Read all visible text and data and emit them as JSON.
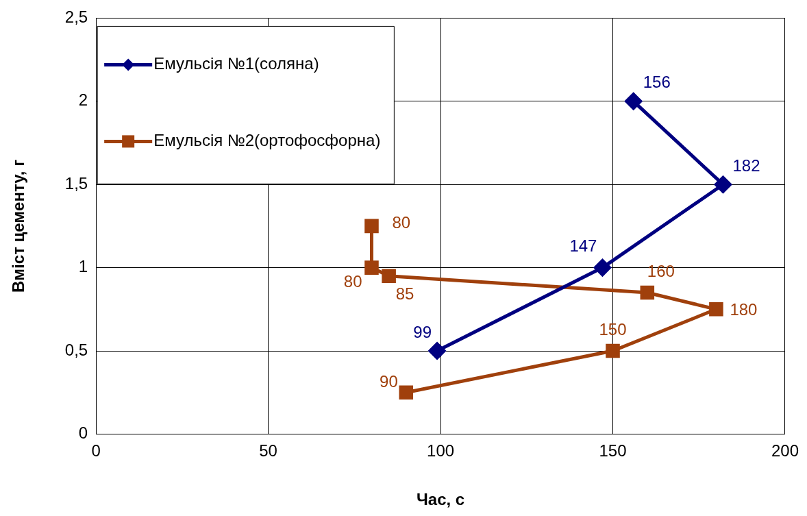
{
  "chart_data": {
    "type": "line",
    "xlabel": "Час, с",
    "ylabel": "Вміст цементу, г",
    "xlim": [
      0,
      200
    ],
    "xticks": [
      0,
      50,
      100,
      150,
      200
    ],
    "ylim": [
      0,
      2.5
    ],
    "yticks": [
      0,
      {
        "value": 0.5,
        "label": "0,5"
      },
      1,
      {
        "value": 1.5,
        "label": "1,5"
      },
      2,
      {
        "value": 2.5,
        "label": "2,5"
      }
    ],
    "grid": true,
    "legend": "top left",
    "series": [
      {
        "name": "Емульсія №1(соляна)",
        "color": "#000080",
        "marker": "diamond",
        "x": [
          99,
          147,
          182,
          156
        ],
        "values": [
          0.5,
          1,
          1.5,
          2
        ]
      },
      {
        "name": "Емульсія №2(ортофосфорна)",
        "color": "#a0400c",
        "marker": "square",
        "x": [
          90,
          150,
          180,
          160,
          85,
          80,
          80
        ],
        "values": [
          0.25,
          0.5,
          0.75,
          0.85,
          0.95,
          1,
          1.25
        ]
      }
    ],
    "annotations": [
      {
        "text": "99",
        "x": 99,
        "y": 0.5
      },
      {
        "text": "147",
        "x": 147,
        "y": 1
      },
      {
        "text": "182",
        "x": 182,
        "y": 1.5
      },
      {
        "text": "156",
        "x": 156,
        "y": 2
      },
      {
        "text": "90",
        "x": 90,
        "y": 0.25
      },
      {
        "text": "150",
        "x": 150,
        "y": 0.5
      },
      {
        "text": "180",
        "x": 180,
        "y": 0.75
      },
      {
        "text": "160",
        "x": 160,
        "y": 0.85
      },
      {
        "text": "85",
        "x": 85,
        "y": 0.95
      },
      {
        "text": "80",
        "x": 80,
        "y": 1
      },
      {
        "text": "80",
        "x": 80,
        "y": 1.25
      }
    ]
  }
}
